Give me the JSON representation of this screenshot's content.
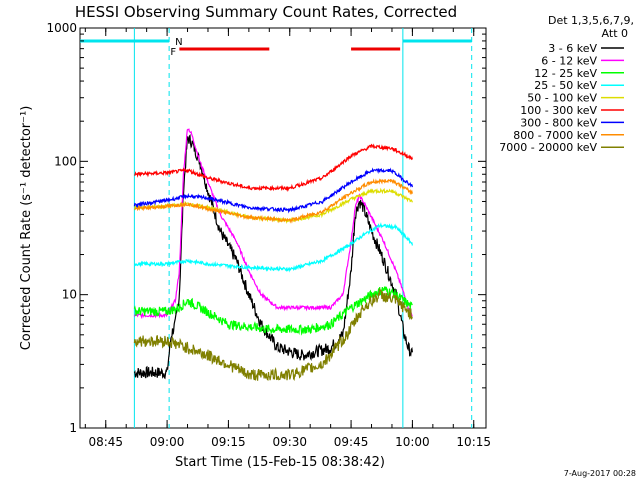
{
  "chart_data": {
    "type": "line",
    "title": "HESSI Observing Summary Count Rates, Corrected",
    "xlabel": "Start Time (15-Feb-15 08:38:42)",
    "ylabel": "Corrected Count Rate (s⁻¹ detector⁻¹)",
    "y_scale": "log",
    "ylim": [
      1,
      1000
    ],
    "y_ticks": [
      {
        "value": 1,
        "label": "1"
      },
      {
        "value": 10,
        "label": "10"
      },
      {
        "value": 100,
        "label": "100"
      },
      {
        "value": 1000,
        "label": "1000"
      }
    ],
    "xlim": [
      "08:38:42",
      "10:18:00"
    ],
    "x_ticks": [
      "08:45",
      "09:00",
      "09:15",
      "09:30",
      "09:45",
      "10:00",
      "10:15"
    ],
    "legend_header": [
      "Det 1,3,5,6,7,9,",
      "Att 0"
    ],
    "legend_position": "right",
    "footer_date": "7-Aug-2017 00:28",
    "annotations": {
      "night_marker": "N",
      "flare_marker": "F",
      "night_intervals": [
        [
          "08:38:42",
          "09:00:30"
        ],
        [
          "09:57:40",
          "10:14:30"
        ]
      ],
      "flare_intervals": [
        [
          "09:03:00",
          "09:25:00"
        ],
        [
          "09:45:00",
          "09:57:00"
        ]
      ],
      "vertical_lines_solid": [
        "08:52:00",
        "09:57:40"
      ],
      "vertical_lines_dashed": [
        "09:00:30",
        "10:14:30"
      ]
    },
    "series": [
      {
        "name": "3 - 6 keV",
        "color": "#000000",
        "points": [
          [
            "08:52",
            "2.6"
          ],
          [
            "09:00",
            "2.6"
          ],
          [
            "09:01",
            "5"
          ],
          [
            "09:02",
            "6"
          ],
          [
            "09:03",
            "10"
          ],
          [
            "09:04",
            "60"
          ],
          [
            "09:05",
            "150"
          ],
          [
            "09:06",
            "140"
          ],
          [
            "09:08",
            "100"
          ],
          [
            "09:10",
            "60"
          ],
          [
            "09:13",
            "30"
          ],
          [
            "09:17",
            "18"
          ],
          [
            "09:20",
            "10"
          ],
          [
            "09:23",
            "6"
          ],
          [
            "09:27",
            "4"
          ],
          [
            "09:33",
            "3.5"
          ],
          [
            "09:40",
            "4"
          ],
          [
            "09:43",
            "5"
          ],
          [
            "09:45",
            "15"
          ],
          [
            "09:46",
            "40"
          ],
          [
            "09:47",
            "50"
          ],
          [
            "09:48",
            "45"
          ],
          [
            "09:50",
            "30"
          ],
          [
            "09:53",
            "18"
          ],
          [
            "09:56",
            "10"
          ],
          [
            "09:58",
            "5"
          ],
          [
            "09:59",
            "4"
          ],
          [
            "10:00",
            "3.5"
          ]
        ]
      },
      {
        "name": "6 - 12 keV",
        "color": "#ff00ff",
        "points": [
          [
            "08:52",
            "7"
          ],
          [
            "09:00",
            "7"
          ],
          [
            "09:01",
            "8"
          ],
          [
            "09:02",
            "9"
          ],
          [
            "09:03",
            "15"
          ],
          [
            "09:04",
            "80"
          ],
          [
            "09:05",
            "180"
          ],
          [
            "09:06",
            "160"
          ],
          [
            "09:08",
            "100"
          ],
          [
            "09:10",
            "70"
          ],
          [
            "09:13",
            "40"
          ],
          [
            "09:17",
            "25"
          ],
          [
            "09:20",
            "15"
          ],
          [
            "09:23",
            "10"
          ],
          [
            "09:27",
            "8"
          ],
          [
            "09:33",
            "8"
          ],
          [
            "09:40",
            "8"
          ],
          [
            "09:43",
            "10"
          ],
          [
            "09:45",
            "25"
          ],
          [
            "09:46",
            "45"
          ],
          [
            "09:47",
            "55"
          ],
          [
            "09:48",
            "50"
          ],
          [
            "09:50",
            "38"
          ],
          [
            "09:53",
            "25"
          ],
          [
            "09:56",
            "15"
          ],
          [
            "09:58",
            "10"
          ],
          [
            "09:59",
            "8"
          ],
          [
            "10:00",
            "7"
          ]
        ]
      },
      {
        "name": "12 - 25 keV",
        "color": "#00ff00",
        "points": [
          [
            "08:52",
            "7.5"
          ],
          [
            "09:00",
            "7.5"
          ],
          [
            "09:03",
            "8"
          ],
          [
            "09:05",
            "9"
          ],
          [
            "09:08",
            "8"
          ],
          [
            "09:15",
            "6"
          ],
          [
            "09:25",
            "5.5"
          ],
          [
            "09:35",
            "5.5"
          ],
          [
            "09:40",
            "6"
          ],
          [
            "09:45",
            "8"
          ],
          [
            "09:50",
            "10"
          ],
          [
            "09:53",
            "11"
          ],
          [
            "09:56",
            "10"
          ],
          [
            "10:00",
            "8"
          ]
        ]
      },
      {
        "name": "25 - 50 keV",
        "color": "#00ffff",
        "points": [
          [
            "08:52",
            "17"
          ],
          [
            "09:00",
            "17"
          ],
          [
            "09:05",
            "18"
          ],
          [
            "09:10",
            "17"
          ],
          [
            "09:20",
            "16"
          ],
          [
            "09:30",
            "15.5"
          ],
          [
            "09:38",
            "18"
          ],
          [
            "09:44",
            "23"
          ],
          [
            "09:48",
            "28"
          ],
          [
            "09:52",
            "33"
          ],
          [
            "09:56",
            "32"
          ],
          [
            "10:00",
            "24"
          ]
        ]
      },
      {
        "name": "50 - 100 keV",
        "color": "#dddd00",
        "points": [
          [
            "08:52",
            "45"
          ],
          [
            "09:00",
            "46"
          ],
          [
            "09:05",
            "48"
          ],
          [
            "09:10",
            "45"
          ],
          [
            "09:20",
            "38"
          ],
          [
            "09:30",
            "36"
          ],
          [
            "09:38",
            "40"
          ],
          [
            "09:45",
            "52"
          ],
          [
            "09:50",
            "60"
          ],
          [
            "09:55",
            "60"
          ],
          [
            "10:00",
            "50"
          ]
        ]
      },
      {
        "name": "100 - 300 keV",
        "color": "#ff0000",
        "points": [
          [
            "08:52",
            "80"
          ],
          [
            "09:00",
            "82"
          ],
          [
            "09:05",
            "86"
          ],
          [
            "09:10",
            "75"
          ],
          [
            "09:20",
            "63"
          ],
          [
            "09:30",
            "63"
          ],
          [
            "09:38",
            "75"
          ],
          [
            "09:45",
            "110"
          ],
          [
            "09:50",
            "130"
          ],
          [
            "09:55",
            "125"
          ],
          [
            "10:00",
            "105"
          ]
        ]
      },
      {
        "name": "300 - 800 keV",
        "color": "#0000ff",
        "points": [
          [
            "08:52",
            "47"
          ],
          [
            "09:00",
            "51"
          ],
          [
            "09:05",
            "55"
          ],
          [
            "09:10",
            "53"
          ],
          [
            "09:20",
            "45"
          ],
          [
            "09:30",
            "43"
          ],
          [
            "09:38",
            "50"
          ],
          [
            "09:45",
            "70"
          ],
          [
            "09:50",
            "85"
          ],
          [
            "09:55",
            "85"
          ],
          [
            "10:00",
            "65"
          ]
        ]
      },
      {
        "name": "800 - 7000 keV",
        "color": "#ff8c00",
        "points": [
          [
            "08:52",
            "44"
          ],
          [
            "09:00",
            "46"
          ],
          [
            "09:05",
            "48"
          ],
          [
            "09:10",
            "44"
          ],
          [
            "09:20",
            "38"
          ],
          [
            "09:30",
            "36"
          ],
          [
            "09:38",
            "42"
          ],
          [
            "09:45",
            "58"
          ],
          [
            "09:50",
            "70"
          ],
          [
            "09:55",
            "72"
          ],
          [
            "10:00",
            "58"
          ]
        ]
      },
      {
        "name": "7000 - 20000 keV",
        "color": "#808000",
        "points": [
          [
            "08:52",
            "4.5"
          ],
          [
            "09:00",
            "4.5"
          ],
          [
            "09:05",
            "4"
          ],
          [
            "09:10",
            "3.5"
          ],
          [
            "09:15",
            "3"
          ],
          [
            "09:20",
            "2.5"
          ],
          [
            "09:30",
            "2.5"
          ],
          [
            "09:38",
            "3"
          ],
          [
            "09:44",
            "5"
          ],
          [
            "09:48",
            "8"
          ],
          [
            "09:52",
            "10"
          ],
          [
            "09:56",
            "9"
          ],
          [
            "10:00",
            "7"
          ]
        ]
      }
    ]
  }
}
